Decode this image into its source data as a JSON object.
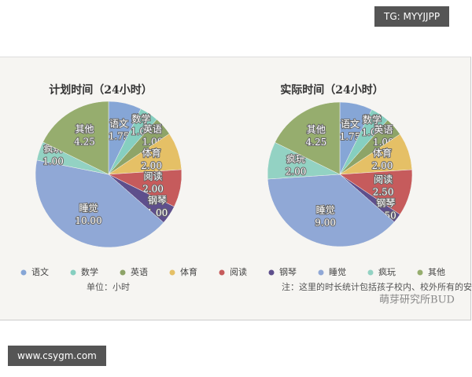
{
  "chart_data": [
    {
      "type": "pie",
      "title": "计划时间（24小时）",
      "categories": [
        "语文",
        "数学",
        "英语",
        "体育",
        "阅读",
        "钢琴",
        "睡觉",
        "疯玩",
        "其他"
      ],
      "values": [
        1.75,
        1.0,
        1.0,
        2.0,
        2.0,
        1.0,
        10.0,
        1.0,
        4.25
      ],
      "value_labels": [
        "1.75",
        "1.00",
        "1.00",
        "2.00",
        "2.00",
        "1.00",
        "10.00",
        "1.00",
        "4.25"
      ],
      "colors": [
        "#86a6d6",
        "#86cfc0",
        "#8ea468",
        "#e5c066",
        "#c65b5c",
        "#5e4f8c",
        "#90a8d6",
        "#93d2c3",
        "#96ad6e"
      ]
    },
    {
      "type": "pie",
      "title": "实际时间（24小时）",
      "categories": [
        "语文",
        "数学",
        "英语",
        "体育",
        "阅读",
        "钢琴",
        "睡觉",
        "疯玩",
        "其他"
      ],
      "values": [
        1.75,
        1.0,
        1.0,
        2.0,
        2.5,
        0.5,
        9.0,
        2.0,
        4.25
      ],
      "value_labels": [
        "1.75",
        "1.00",
        "1.00",
        "2.00",
        "2.50",
        "0.50",
        "9.00",
        "2.00",
        "4.25"
      ],
      "colors": [
        "#86a6d6",
        "#86cfc0",
        "#8ea468",
        "#e5c066",
        "#c65b5c",
        "#5e4f8c",
        "#90a8d6",
        "#93d2c3",
        "#96ad6e"
      ]
    }
  ],
  "notes": {
    "tag_top": "TG: MYYJJPP",
    "tag_bottom": "www.csygm.com",
    "unit": "单位：小时",
    "note": "注：这里的时长统计包括孩子校内、校外所有的安排，含课堂学习。",
    "source": "萌芽研究所BUD"
  }
}
